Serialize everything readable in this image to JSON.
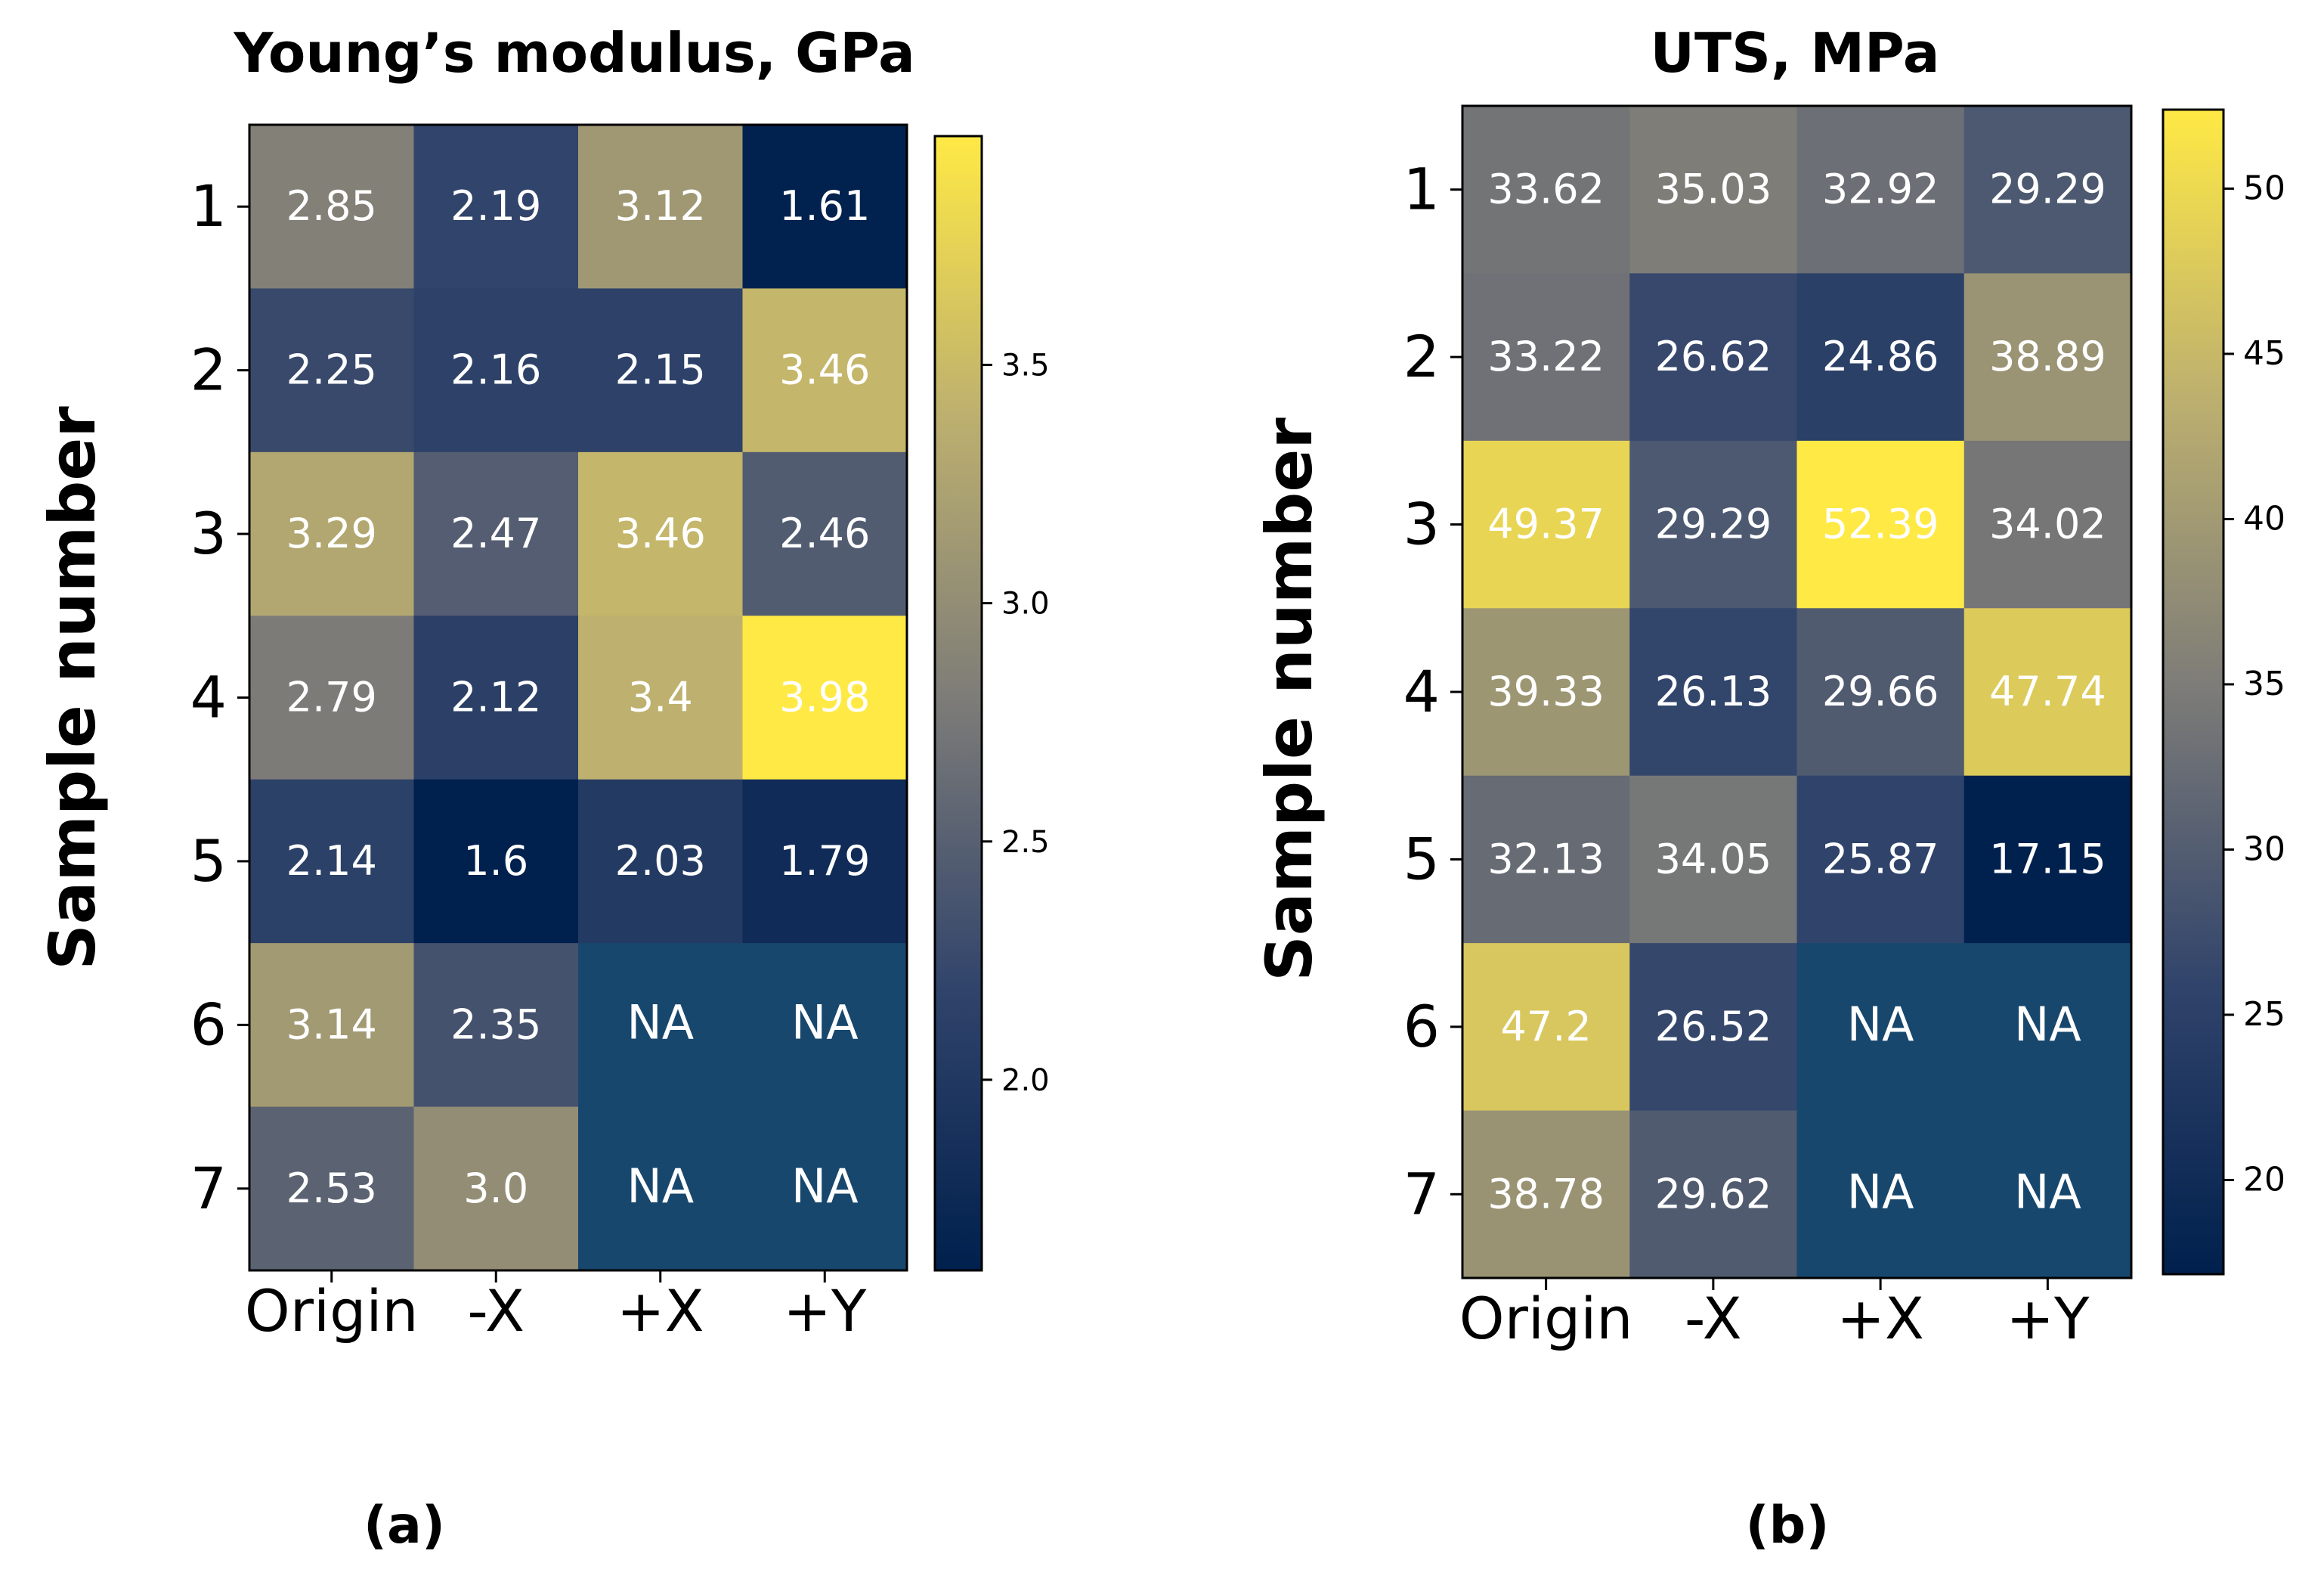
{
  "panels": [
    {
      "caption": "(a)",
      "colorbar_ticks": [
        "2.0",
        "2.5",
        "3.0",
        "3.5"
      ]
    },
    {
      "caption": "(b)",
      "colorbar_ticks": [
        "20",
        "25",
        "30",
        "35",
        "40",
        "45",
        "50"
      ]
    }
  ],
  "colors": {
    "dark": "#00204d",
    "mid": "#7c7b78",
    "bright": "#ffe945",
    "na_fill": "#17476d",
    "cell_text": "#ffffff"
  },
  "chart_data": [
    {
      "type": "heatmap",
      "title": "Young’s modulus, GPa",
      "xlabel": "",
      "ylabel": "Sample number",
      "x_categories": [
        "Origin",
        "-X",
        "+X",
        "+Y"
      ],
      "y_categories": [
        "1",
        "2",
        "3",
        "4",
        "5",
        "6",
        "7"
      ],
      "values": [
        [
          "2.85",
          "2.19",
          "3.12",
          "1.61"
        ],
        [
          "2.25",
          "2.16",
          "2.15",
          "3.46"
        ],
        [
          "3.29",
          "2.47",
          "3.46",
          "2.46"
        ],
        [
          "2.79",
          "2.12",
          "3.4",
          "3.98"
        ],
        [
          "2.14",
          "1.6",
          "2.03",
          "1.79"
        ],
        [
          "3.14",
          "2.35",
          "NA",
          "NA"
        ],
        [
          "2.53",
          "3.0",
          "NA",
          "NA"
        ]
      ],
      "color_range": [
        1.6,
        3.98
      ],
      "colorbar_ticks": [
        2.0,
        2.5,
        3.0,
        3.5
      ],
      "colormap": "cividis"
    },
    {
      "type": "heatmap",
      "title": "UTS, MPa",
      "xlabel": "",
      "ylabel": "Sample number",
      "x_categories": [
        "Origin",
        "-X",
        "+X",
        "+Y"
      ],
      "y_categories": [
        "1",
        "2",
        "3",
        "4",
        "5",
        "6",
        "7"
      ],
      "values": [
        [
          "33.62",
          "35.03",
          "32.92",
          "29.29"
        ],
        [
          "33.22",
          "26.62",
          "24.86",
          "38.89"
        ],
        [
          "49.37",
          "29.29",
          "52.39",
          "34.02"
        ],
        [
          "39.33",
          "26.13",
          "29.66",
          "47.74"
        ],
        [
          "32.13",
          "34.05",
          "25.87",
          "17.15"
        ],
        [
          "47.2",
          "26.52",
          "NA",
          "NA"
        ],
        [
          "38.78",
          "29.62",
          "NA",
          "NA"
        ]
      ],
      "color_range": [
        17.15,
        52.39
      ],
      "colorbar_ticks": [
        20,
        25,
        30,
        35,
        40,
        45,
        50
      ],
      "colormap": "cividis"
    }
  ]
}
